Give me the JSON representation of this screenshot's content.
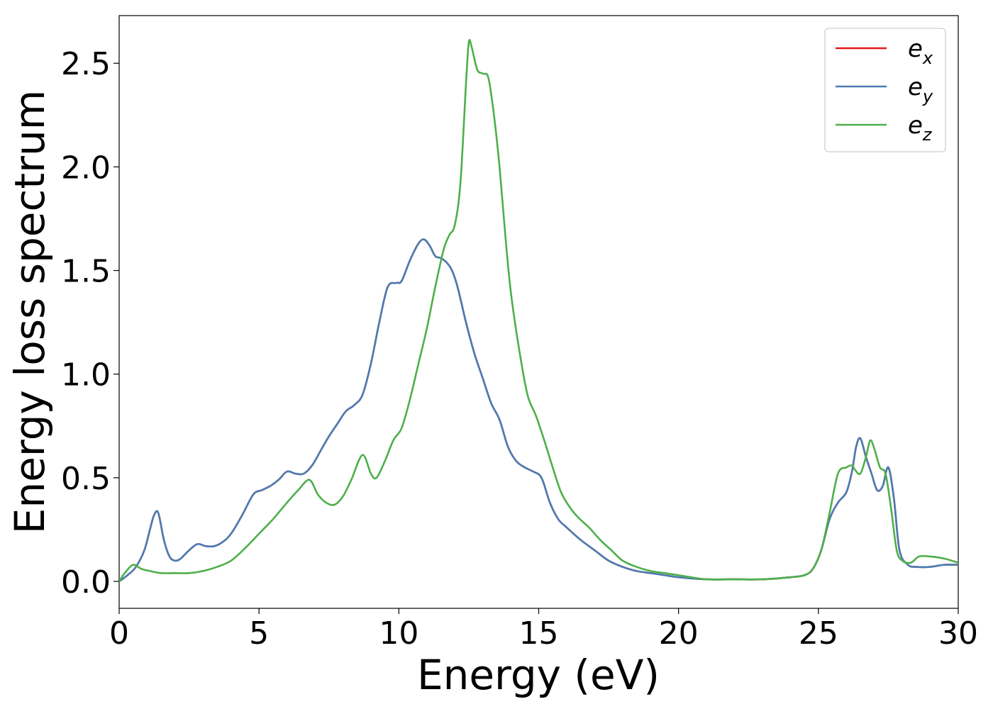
{
  "chart_data": {
    "type": "line",
    "xlabel": "Energy (eV)",
    "ylabel": "Energy loss spectrum",
    "xlim": [
      0,
      30
    ],
    "ylim": [
      -0.13,
      2.73
    ],
    "xticks": [
      "0",
      "5",
      "10",
      "15",
      "20",
      "25",
      "30"
    ],
    "xtick_values": [
      0,
      5,
      10,
      15,
      20,
      25,
      30
    ],
    "yticks": [
      "0.0",
      "0.5",
      "1.0",
      "1.5",
      "2.0",
      "2.5"
    ],
    "ytick_values": [
      0.0,
      0.5,
      1.0,
      1.5,
      2.0,
      2.5
    ],
    "grid": false,
    "legend_position": "top-right",
    "series": [
      {
        "name": "e",
        "subscript": "x",
        "color": "#e41a1c",
        "x": [
          0,
          0.3,
          0.6,
          0.9,
          1.1,
          1.25,
          1.4,
          1.6,
          1.8,
          2.0,
          2.2,
          2.5,
          2.8,
          3.1,
          3.4,
          3.7,
          4.0,
          4.4,
          4.8,
          5.1,
          5.4,
          5.7,
          6.0,
          6.3,
          6.6,
          6.9,
          7.2,
          7.5,
          7.8,
          8.1,
          8.4,
          8.7,
          9.0,
          9.3,
          9.6,
          9.9,
          10.1,
          10.4,
          10.7,
          10.9,
          11.1,
          11.3,
          11.5,
          11.7,
          11.9,
          12.1,
          12.4,
          12.7,
          13.0,
          13.3,
          13.6,
          13.9,
          14.2,
          14.5,
          14.8,
          15.1,
          15.4,
          15.7,
          16.0,
          16.5,
          17.0,
          17.5,
          18.0,
          18.5,
          19.0,
          19.5,
          20.0,
          21.0,
          22.0,
          23.0,
          24.0,
          24.5,
          24.8,
          25.1,
          25.4,
          25.7,
          26.0,
          26.2,
          26.35,
          26.5,
          26.7,
          26.9,
          27.1,
          27.3,
          27.5,
          27.7,
          27.9,
          28.2,
          28.5,
          29.0,
          29.5,
          30.0
        ],
        "y": [
          0.0,
          0.03,
          0.07,
          0.15,
          0.25,
          0.32,
          0.33,
          0.2,
          0.12,
          0.1,
          0.11,
          0.15,
          0.18,
          0.17,
          0.17,
          0.19,
          0.23,
          0.32,
          0.42,
          0.44,
          0.46,
          0.49,
          0.53,
          0.52,
          0.52,
          0.56,
          0.63,
          0.7,
          0.76,
          0.82,
          0.85,
          0.9,
          1.05,
          1.25,
          1.42,
          1.44,
          1.45,
          1.55,
          1.63,
          1.65,
          1.62,
          1.57,
          1.56,
          1.54,
          1.5,
          1.42,
          1.25,
          1.1,
          0.98,
          0.86,
          0.78,
          0.65,
          0.58,
          0.55,
          0.53,
          0.5,
          0.38,
          0.3,
          0.26,
          0.2,
          0.15,
          0.1,
          0.07,
          0.05,
          0.04,
          0.03,
          0.02,
          0.01,
          0.01,
          0.01,
          0.02,
          0.03,
          0.06,
          0.15,
          0.3,
          0.38,
          0.43,
          0.53,
          0.65,
          0.69,
          0.6,
          0.52,
          0.44,
          0.46,
          0.55,
          0.4,
          0.15,
          0.08,
          0.07,
          0.07,
          0.08,
          0.08
        ]
      },
      {
        "name": "e",
        "subscript": "y",
        "color": "#4a7db3",
        "x": [
          0,
          0.3,
          0.6,
          0.9,
          1.1,
          1.25,
          1.4,
          1.6,
          1.8,
          2.0,
          2.2,
          2.5,
          2.8,
          3.1,
          3.4,
          3.7,
          4.0,
          4.4,
          4.8,
          5.1,
          5.4,
          5.7,
          6.0,
          6.3,
          6.6,
          6.9,
          7.2,
          7.5,
          7.8,
          8.1,
          8.4,
          8.7,
          9.0,
          9.3,
          9.6,
          9.9,
          10.1,
          10.4,
          10.7,
          10.9,
          11.1,
          11.3,
          11.5,
          11.7,
          11.9,
          12.1,
          12.4,
          12.7,
          13.0,
          13.3,
          13.6,
          13.9,
          14.2,
          14.5,
          14.8,
          15.1,
          15.4,
          15.7,
          16.0,
          16.5,
          17.0,
          17.5,
          18.0,
          18.5,
          19.0,
          19.5,
          20.0,
          21.0,
          22.0,
          23.0,
          24.0,
          24.5,
          24.8,
          25.1,
          25.4,
          25.7,
          26.0,
          26.2,
          26.35,
          26.5,
          26.7,
          26.9,
          27.1,
          27.3,
          27.5,
          27.7,
          27.9,
          28.2,
          28.5,
          29.0,
          29.5,
          30.0
        ],
        "y": [
          0.0,
          0.03,
          0.07,
          0.15,
          0.25,
          0.32,
          0.33,
          0.2,
          0.12,
          0.1,
          0.11,
          0.15,
          0.18,
          0.17,
          0.17,
          0.19,
          0.23,
          0.32,
          0.42,
          0.44,
          0.46,
          0.49,
          0.53,
          0.52,
          0.52,
          0.56,
          0.63,
          0.7,
          0.76,
          0.82,
          0.85,
          0.9,
          1.05,
          1.25,
          1.42,
          1.44,
          1.45,
          1.55,
          1.63,
          1.65,
          1.62,
          1.57,
          1.56,
          1.54,
          1.5,
          1.42,
          1.25,
          1.1,
          0.98,
          0.86,
          0.78,
          0.65,
          0.58,
          0.55,
          0.53,
          0.5,
          0.38,
          0.3,
          0.26,
          0.2,
          0.15,
          0.1,
          0.07,
          0.05,
          0.04,
          0.03,
          0.02,
          0.01,
          0.01,
          0.01,
          0.02,
          0.03,
          0.06,
          0.15,
          0.3,
          0.38,
          0.43,
          0.53,
          0.65,
          0.69,
          0.6,
          0.52,
          0.44,
          0.46,
          0.55,
          0.4,
          0.15,
          0.08,
          0.07,
          0.07,
          0.08,
          0.08
        ]
      },
      {
        "name": "e",
        "subscript": "z",
        "color": "#4daf4a",
        "x": [
          0,
          0.2,
          0.5,
          0.8,
          1.1,
          1.5,
          2.0,
          2.5,
          3.0,
          3.5,
          4.0,
          4.5,
          5.0,
          5.5,
          6.0,
          6.4,
          6.8,
          7.1,
          7.4,
          7.7,
          8.0,
          8.3,
          8.7,
          9.0,
          9.2,
          9.5,
          9.8,
          10.1,
          10.4,
          10.7,
          11.0,
          11.3,
          11.6,
          11.8,
          12.0,
          12.2,
          12.4,
          12.5,
          12.6,
          12.8,
          13.0,
          13.2,
          13.4,
          13.6,
          13.8,
          14.0,
          14.3,
          14.6,
          14.9,
          15.2,
          15.5,
          15.8,
          16.1,
          16.4,
          16.8,
          17.2,
          17.6,
          18.0,
          18.5,
          19.0,
          19.5,
          20.0,
          21.0,
          22.0,
          23.0,
          24.0,
          24.5,
          24.8,
          25.1,
          25.4,
          25.7,
          26.0,
          26.2,
          26.3,
          26.5,
          26.7,
          26.85,
          27.0,
          27.2,
          27.4,
          27.6,
          27.8,
          28.0,
          28.3,
          28.6,
          29.0,
          29.5,
          30.0
        ],
        "y": [
          0.0,
          0.04,
          0.08,
          0.06,
          0.05,
          0.04,
          0.04,
          0.04,
          0.05,
          0.07,
          0.1,
          0.16,
          0.23,
          0.3,
          0.38,
          0.44,
          0.49,
          0.42,
          0.38,
          0.37,
          0.41,
          0.49,
          0.61,
          0.52,
          0.5,
          0.58,
          0.68,
          0.74,
          0.88,
          1.05,
          1.22,
          1.42,
          1.6,
          1.67,
          1.72,
          1.92,
          2.4,
          2.6,
          2.58,
          2.47,
          2.45,
          2.43,
          2.25,
          2.0,
          1.68,
          1.4,
          1.12,
          0.9,
          0.8,
          0.68,
          0.55,
          0.43,
          0.36,
          0.31,
          0.26,
          0.2,
          0.15,
          0.1,
          0.07,
          0.05,
          0.04,
          0.03,
          0.01,
          0.01,
          0.01,
          0.02,
          0.03,
          0.06,
          0.15,
          0.33,
          0.52,
          0.55,
          0.56,
          0.54,
          0.52,
          0.6,
          0.68,
          0.64,
          0.55,
          0.52,
          0.35,
          0.15,
          0.1,
          0.09,
          0.12,
          0.12,
          0.11,
          0.09
        ]
      }
    ]
  }
}
